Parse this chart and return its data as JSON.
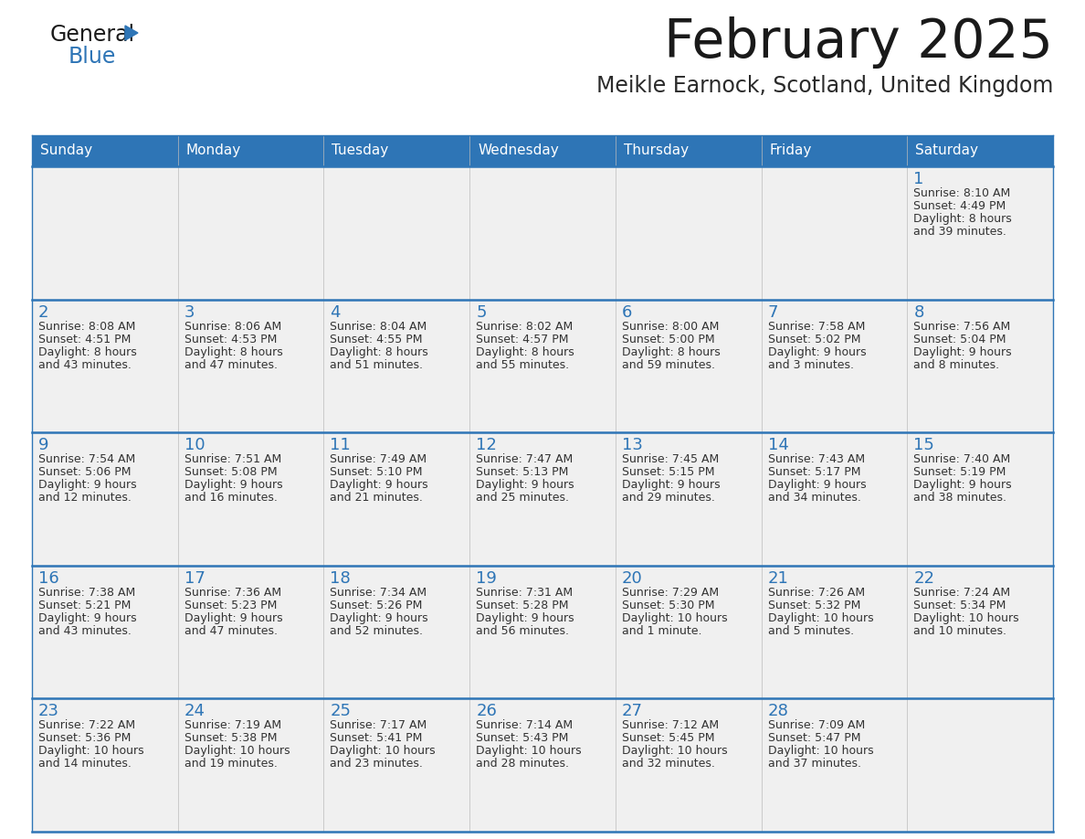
{
  "title": "February 2025",
  "subtitle": "Meikle Earnock, Scotland, United Kingdom",
  "days_of_week": [
    "Sunday",
    "Monday",
    "Tuesday",
    "Wednesday",
    "Thursday",
    "Friday",
    "Saturday"
  ],
  "header_bg": "#2e75b6",
  "header_text": "#ffffff",
  "cell_bg": "#f0f0f0",
  "day_number_color": "#2e75b6",
  "divider_color": "#2e75b6",
  "text_color": "#333333",
  "logo_general_color": "#1a1a1a",
  "logo_blue_color": "#2e75b6",
  "calendar_data": [
    [
      null,
      null,
      null,
      null,
      null,
      null,
      {
        "day": 1,
        "sunrise": "8:10 AM",
        "sunset": "4:49 PM",
        "daylight": "8 hours",
        "daylight2": "and 39 minutes."
      }
    ],
    [
      {
        "day": 2,
        "sunrise": "8:08 AM",
        "sunset": "4:51 PM",
        "daylight": "8 hours",
        "daylight2": "and 43 minutes."
      },
      {
        "day": 3,
        "sunrise": "8:06 AM",
        "sunset": "4:53 PM",
        "daylight": "8 hours",
        "daylight2": "and 47 minutes."
      },
      {
        "day": 4,
        "sunrise": "8:04 AM",
        "sunset": "4:55 PM",
        "daylight": "8 hours",
        "daylight2": "and 51 minutes."
      },
      {
        "day": 5,
        "sunrise": "8:02 AM",
        "sunset": "4:57 PM",
        "daylight": "8 hours",
        "daylight2": "and 55 minutes."
      },
      {
        "day": 6,
        "sunrise": "8:00 AM",
        "sunset": "5:00 PM",
        "daylight": "8 hours",
        "daylight2": "and 59 minutes."
      },
      {
        "day": 7,
        "sunrise": "7:58 AM",
        "sunset": "5:02 PM",
        "daylight": "9 hours",
        "daylight2": "and 3 minutes."
      },
      {
        "day": 8,
        "sunrise": "7:56 AM",
        "sunset": "5:04 PM",
        "daylight": "9 hours",
        "daylight2": "and 8 minutes."
      }
    ],
    [
      {
        "day": 9,
        "sunrise": "7:54 AM",
        "sunset": "5:06 PM",
        "daylight": "9 hours",
        "daylight2": "and 12 minutes."
      },
      {
        "day": 10,
        "sunrise": "7:51 AM",
        "sunset": "5:08 PM",
        "daylight": "9 hours",
        "daylight2": "and 16 minutes."
      },
      {
        "day": 11,
        "sunrise": "7:49 AM",
        "sunset": "5:10 PM",
        "daylight": "9 hours",
        "daylight2": "and 21 minutes."
      },
      {
        "day": 12,
        "sunrise": "7:47 AM",
        "sunset": "5:13 PM",
        "daylight": "9 hours",
        "daylight2": "and 25 minutes."
      },
      {
        "day": 13,
        "sunrise": "7:45 AM",
        "sunset": "5:15 PM",
        "daylight": "9 hours",
        "daylight2": "and 29 minutes."
      },
      {
        "day": 14,
        "sunrise": "7:43 AM",
        "sunset": "5:17 PM",
        "daylight": "9 hours",
        "daylight2": "and 34 minutes."
      },
      {
        "day": 15,
        "sunrise": "7:40 AM",
        "sunset": "5:19 PM",
        "daylight": "9 hours",
        "daylight2": "and 38 minutes."
      }
    ],
    [
      {
        "day": 16,
        "sunrise": "7:38 AM",
        "sunset": "5:21 PM",
        "daylight": "9 hours",
        "daylight2": "and 43 minutes."
      },
      {
        "day": 17,
        "sunrise": "7:36 AM",
        "sunset": "5:23 PM",
        "daylight": "9 hours",
        "daylight2": "and 47 minutes."
      },
      {
        "day": 18,
        "sunrise": "7:34 AM",
        "sunset": "5:26 PM",
        "daylight": "9 hours",
        "daylight2": "and 52 minutes."
      },
      {
        "day": 19,
        "sunrise": "7:31 AM",
        "sunset": "5:28 PM",
        "daylight": "9 hours",
        "daylight2": "and 56 minutes."
      },
      {
        "day": 20,
        "sunrise": "7:29 AM",
        "sunset": "5:30 PM",
        "daylight": "10 hours",
        "daylight2": "and 1 minute."
      },
      {
        "day": 21,
        "sunrise": "7:26 AM",
        "sunset": "5:32 PM",
        "daylight": "10 hours",
        "daylight2": "and 5 minutes."
      },
      {
        "day": 22,
        "sunrise": "7:24 AM",
        "sunset": "5:34 PM",
        "daylight": "10 hours",
        "daylight2": "and 10 minutes."
      }
    ],
    [
      {
        "day": 23,
        "sunrise": "7:22 AM",
        "sunset": "5:36 PM",
        "daylight": "10 hours",
        "daylight2": "and 14 minutes."
      },
      {
        "day": 24,
        "sunrise": "7:19 AM",
        "sunset": "5:38 PM",
        "daylight": "10 hours",
        "daylight2": "and 19 minutes."
      },
      {
        "day": 25,
        "sunrise": "7:17 AM",
        "sunset": "5:41 PM",
        "daylight": "10 hours",
        "daylight2": "and 23 minutes."
      },
      {
        "day": 26,
        "sunrise": "7:14 AM",
        "sunset": "5:43 PM",
        "daylight": "10 hours",
        "daylight2": "and 28 minutes."
      },
      {
        "day": 27,
        "sunrise": "7:12 AM",
        "sunset": "5:45 PM",
        "daylight": "10 hours",
        "daylight2": "and 32 minutes."
      },
      {
        "day": 28,
        "sunrise": "7:09 AM",
        "sunset": "5:47 PM",
        "daylight": "10 hours",
        "daylight2": "and 37 minutes."
      },
      null
    ]
  ]
}
